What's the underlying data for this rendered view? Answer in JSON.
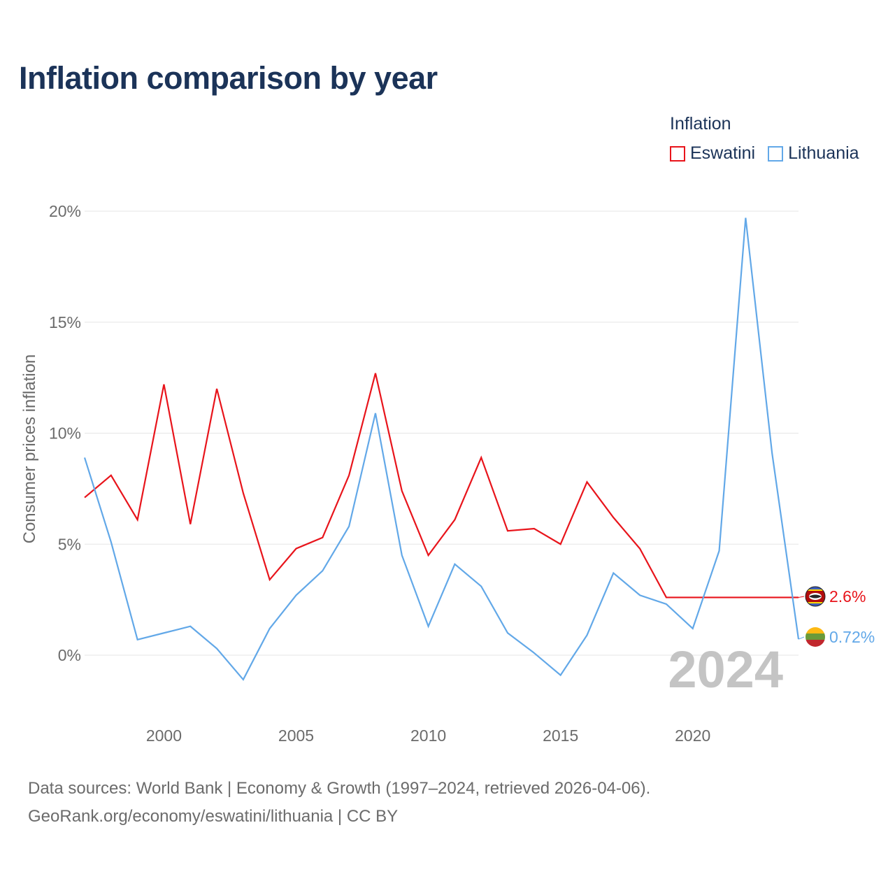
{
  "title": "Inflation comparison by year",
  "legend": {
    "title": "Inflation",
    "items": [
      {
        "label": "Eswatini",
        "color": "#e8141b"
      },
      {
        "label": "Lithuania",
        "color": "#62a8e8"
      }
    ]
  },
  "chart_data": {
    "type": "line",
    "ylabel": "Consumer prices inflation",
    "xlabel": "",
    "xlim": [
      1997,
      2024
    ],
    "ylim": [
      -2.5,
      20
    ],
    "x_ticks": [
      2000,
      2005,
      2010,
      2015,
      2020
    ],
    "x_tick_labels": [
      "2000",
      "2005",
      "2010",
      "2015",
      "2020"
    ],
    "y_ticks": [
      0,
      5,
      10,
      15,
      20
    ],
    "y_tick_labels": [
      "0%",
      "5%",
      "10%",
      "15%",
      "20%"
    ],
    "grid": true,
    "year_watermark": "2024",
    "x": [
      1997,
      1998,
      1999,
      2000,
      2001,
      2002,
      2003,
      2004,
      2005,
      2006,
      2007,
      2008,
      2009,
      2010,
      2011,
      2012,
      2013,
      2014,
      2015,
      2016,
      2017,
      2018,
      2019,
      2020,
      2021,
      2022,
      2023,
      2024
    ],
    "series": [
      {
        "name": "Eswatini",
        "color": "#e8141b",
        "end_label": "2.6%",
        "values": [
          7.1,
          8.1,
          6.1,
          12.2,
          5.9,
          12.0,
          7.3,
          3.4,
          4.8,
          5.3,
          8.1,
          12.7,
          7.4,
          4.5,
          6.1,
          8.9,
          5.6,
          5.7,
          5.0,
          7.8,
          6.2,
          4.8,
          2.6,
          2.6,
          2.6,
          2.6,
          2.6,
          2.6
        ]
      },
      {
        "name": "Lithuania",
        "color": "#62a8e8",
        "end_label": "0.72%",
        "values": [
          8.9,
          5.1,
          0.7,
          1.0,
          1.3,
          0.3,
          -1.1,
          1.2,
          2.7,
          3.8,
          5.8,
          10.9,
          4.5,
          1.3,
          4.1,
          3.1,
          1.0,
          0.1,
          -0.9,
          0.9,
          3.7,
          2.7,
          2.3,
          1.2,
          4.7,
          19.7,
          9.1,
          0.72
        ]
      }
    ]
  },
  "footer": {
    "line1": "Data sources: World Bank | Economy & Growth (1997–2024, retrieved 2026-04-06).",
    "line2": "GeoRank.org/economy/eswatini/lithuania | CC BY"
  }
}
